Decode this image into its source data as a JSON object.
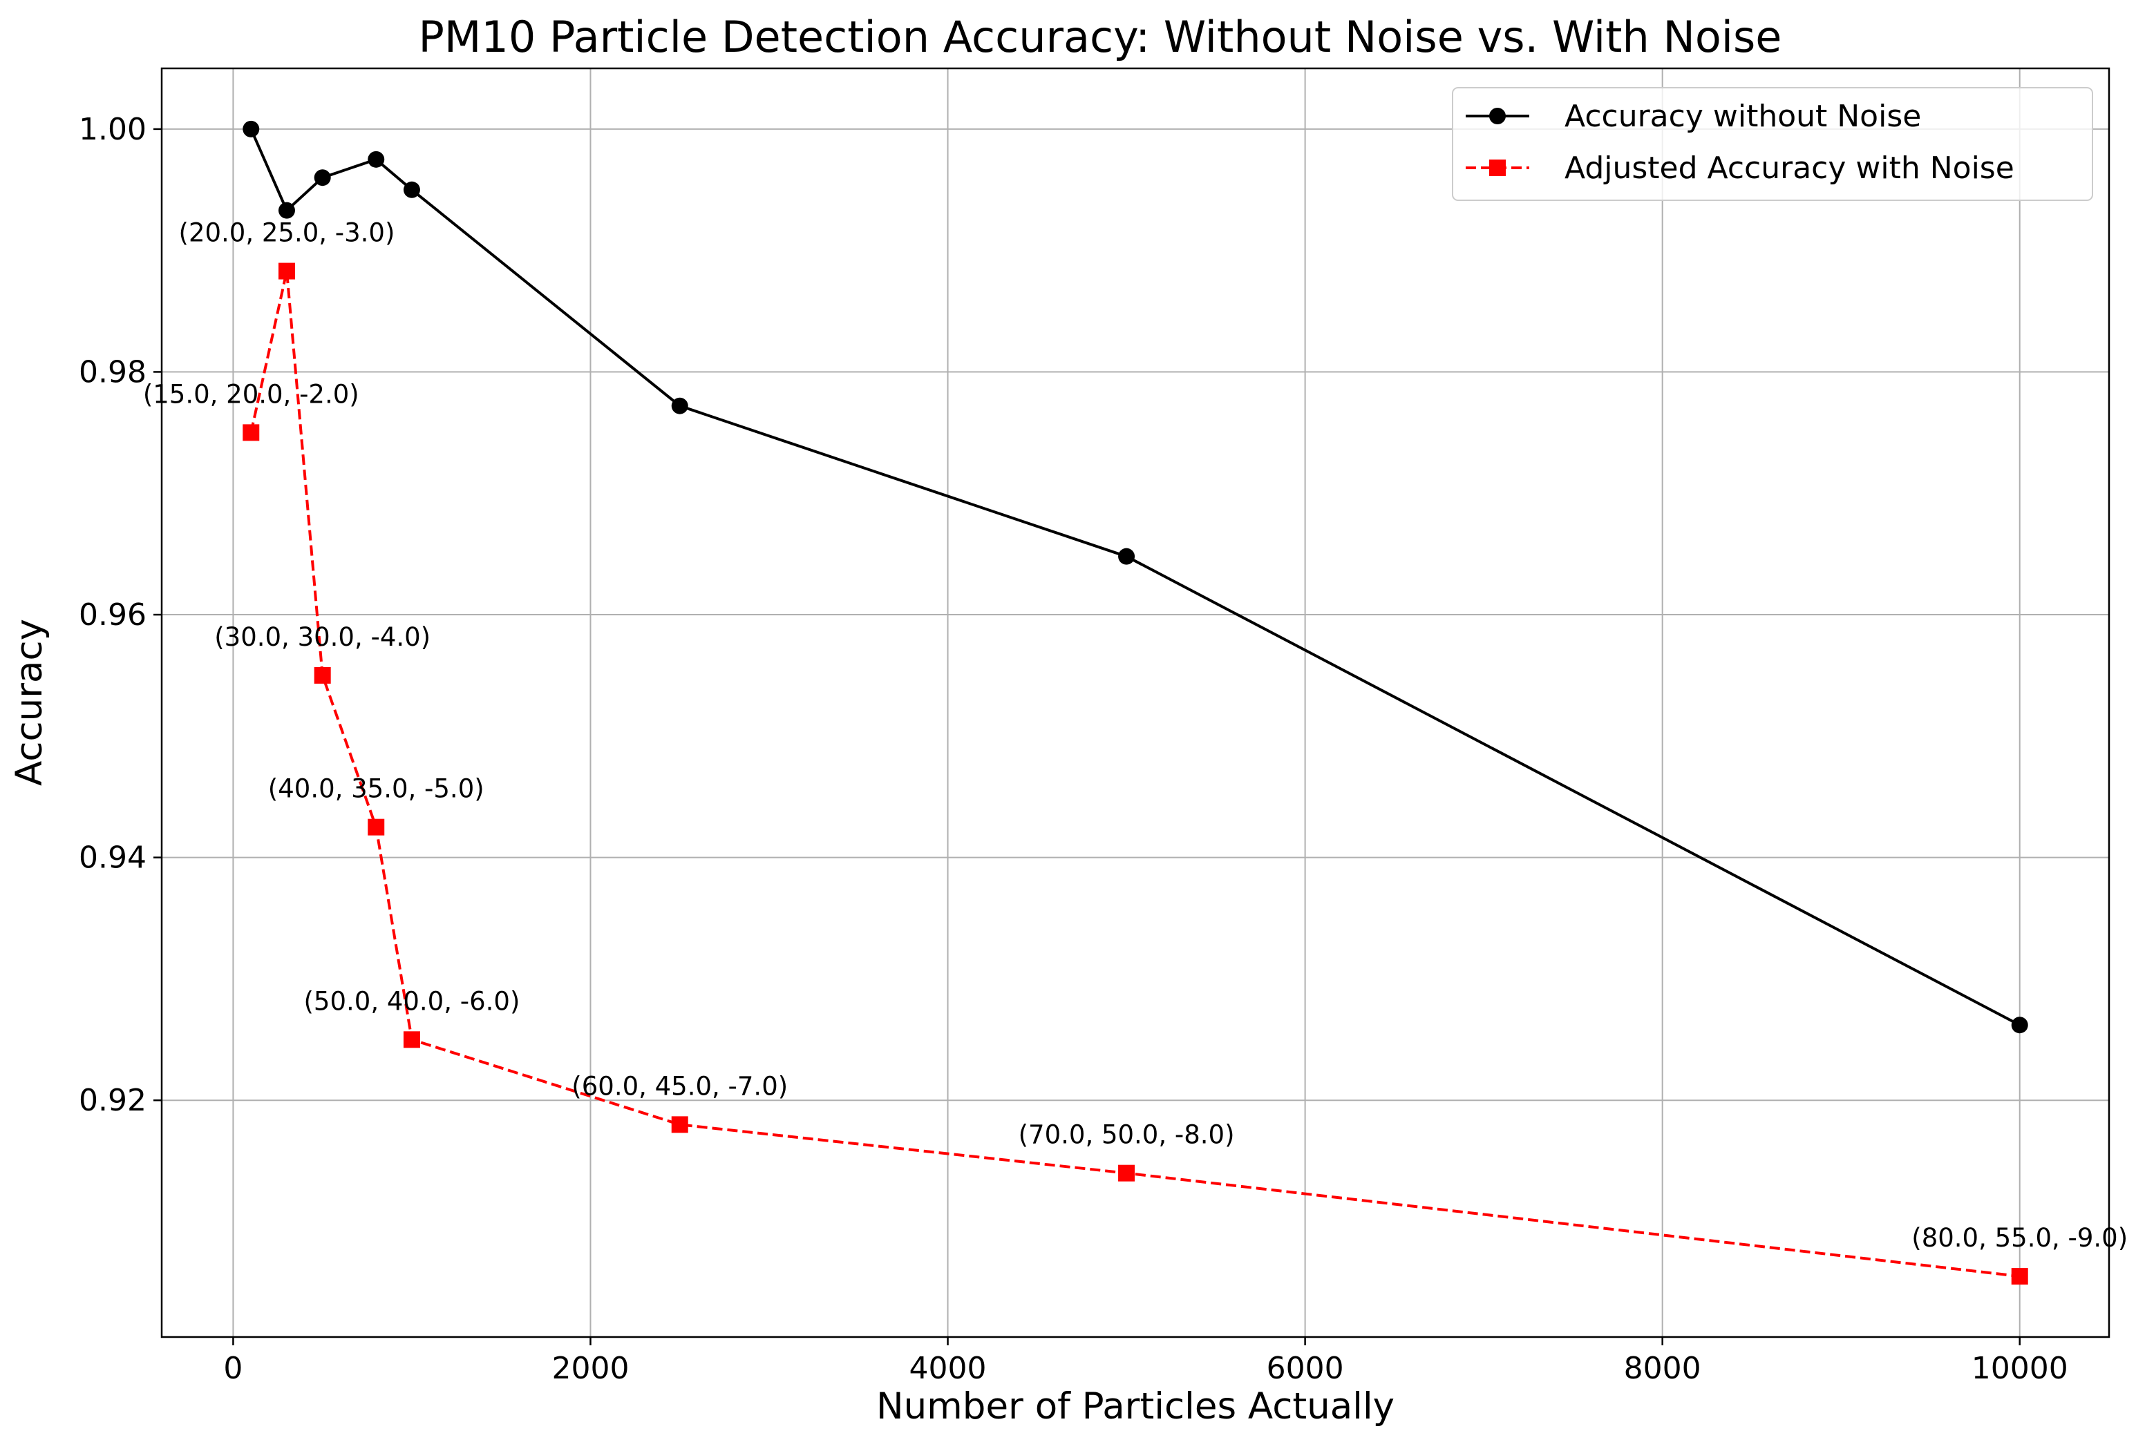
{
  "chart_data": {
    "type": "line",
    "title": "PM10 Particle Detection Accuracy: Without Noise vs. With Noise",
    "xlabel": "Number of Particles Actually",
    "ylabel": "Accuracy",
    "x": [
      100,
      300,
      500,
      800,
      1000,
      2500,
      5000,
      10000
    ],
    "xlim": [
      -400,
      10500
    ],
    "ylim": [
      0.9005,
      1.005
    ],
    "xticks": [
      0,
      2000,
      4000,
      6000,
      8000,
      10000
    ],
    "xtick_labels": [
      "0",
      "2000",
      "4000",
      "6000",
      "8000",
      "10000"
    ],
    "yticks": [
      0.92,
      0.94,
      0.96,
      0.98,
      1.0
    ],
    "ytick_labels": [
      "0.92",
      "0.94",
      "0.96",
      "0.98",
      "1.00"
    ],
    "grid": true,
    "legend_position": "top-right",
    "series": [
      {
        "name": "Accuracy without Noise",
        "color": "#000000",
        "marker": "circle",
        "line_style": "solid",
        "values": [
          1.0,
          0.9933,
          0.996,
          0.9975,
          0.995,
          0.9772,
          0.9648,
          0.9262
        ]
      },
      {
        "name": "Adjusted Accuracy with Noise",
        "color": "#ff0000",
        "marker": "square",
        "line_style": "dashed",
        "values": [
          0.975,
          0.9883,
          0.955,
          0.9425,
          0.925,
          0.918,
          0.914,
          0.9055
        ]
      }
    ],
    "annotations": [
      {
        "text": "(15.0, 20.0, -2.0)",
        "x": 100,
        "y": 0.975
      },
      {
        "text": "(20.0, 25.0, -3.0)",
        "x": 300,
        "y": 0.9883
      },
      {
        "text": "(30.0, 30.0, -4.0)",
        "x": 500,
        "y": 0.955
      },
      {
        "text": "(40.0, 35.0, -5.0)",
        "x": 800,
        "y": 0.9425
      },
      {
        "text": "(50.0, 40.0, -6.0)",
        "x": 1000,
        "y": 0.925
      },
      {
        "text": "(60.0, 45.0, -7.0)",
        "x": 2500,
        "y": 0.918
      },
      {
        "text": "(70.0, 50.0, -8.0)",
        "x": 5000,
        "y": 0.914
      },
      {
        "text": "(80.0, 55.0, -9.0)",
        "x": 10000,
        "y": 0.9055
      }
    ]
  }
}
